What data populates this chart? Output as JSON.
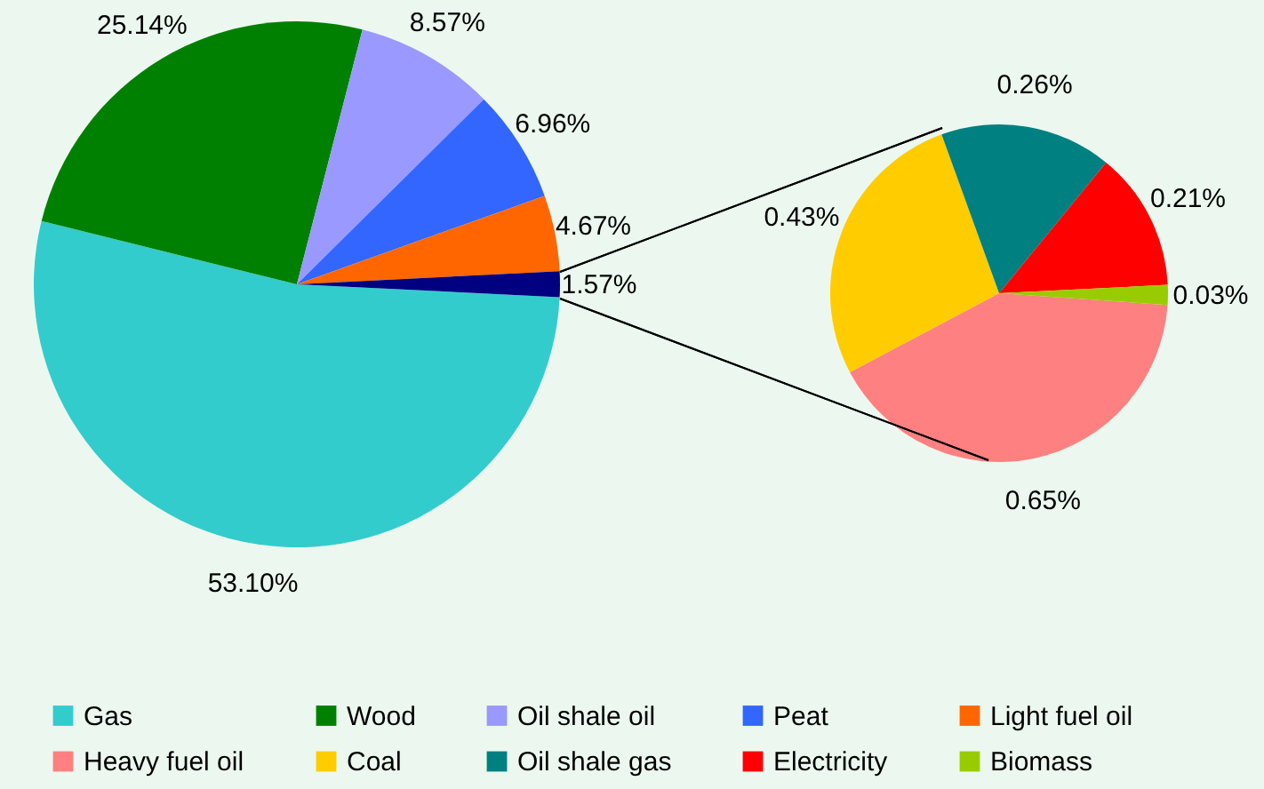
{
  "chart_data": [
    {
      "type": "pie",
      "categories": [
        "Gas",
        "Wood",
        "Oil shale oil",
        "Peat",
        "Light fuel oil",
        null
      ],
      "values": [
        53.1,
        25.14,
        8.57,
        6.96,
        4.67,
        1.57
      ],
      "colors": [
        "#33cccc",
        "#008000",
        "#9999ff",
        "#3366ff",
        "#ff6600",
        "#000080"
      ],
      "value_labels": [
        "53.10%",
        "25.14%",
        "8.57%",
        "6.96%",
        "4.67%",
        "1.57%"
      ],
      "legend": "bottom"
    },
    {
      "type": "pie",
      "categories": [
        "Heavy fuel oil",
        "Coal",
        "Oil shale gas",
        "Electricity",
        "Biomass"
      ],
      "values": [
        0.65,
        0.43,
        0.26,
        0.21,
        0.03
      ],
      "colors": [
        "#ff8080",
        "#ffcc00",
        "#008080",
        "#ff0000",
        "#99cc00"
      ],
      "value_labels": [
        "0.65%",
        "0.43%",
        "0.26%",
        "0.21%",
        "0.03%"
      ],
      "legend": "bottom"
    }
  ]
}
